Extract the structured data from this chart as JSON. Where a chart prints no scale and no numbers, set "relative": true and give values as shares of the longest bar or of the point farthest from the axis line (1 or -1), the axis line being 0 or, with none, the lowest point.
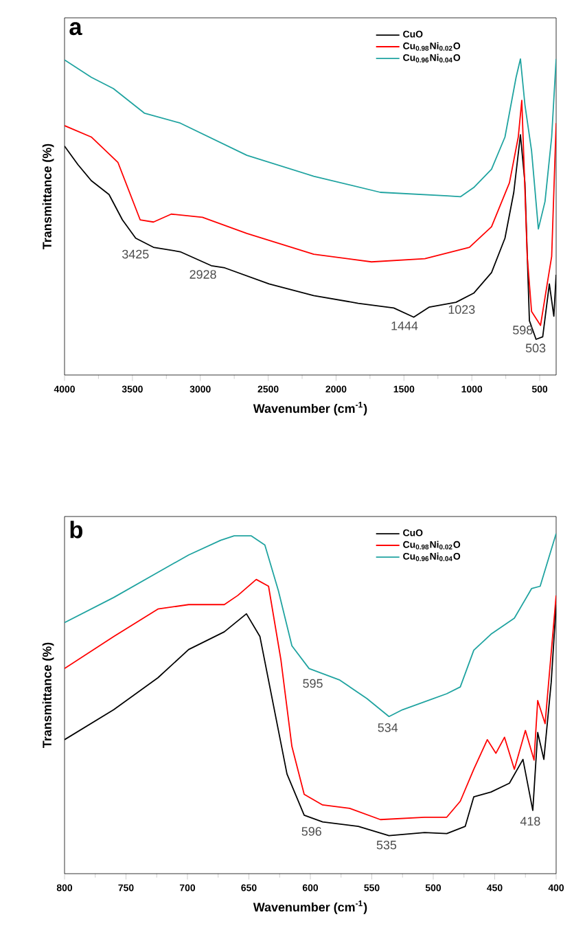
{
  "chart_data": [
    {
      "type": "line",
      "title": "a",
      "xlabel": "Wavenumber (cm$^{-1}$)",
      "ylabel": "Transmittance (%)",
      "relative": true,
      "xlim": [
        4000,
        379
      ],
      "xticks": [
        4000,
        3500,
        3000,
        2500,
        2000,
        1500,
        1000,
        500
      ],
      "legend": "top right",
      "marker": "none",
      "series": [
        {
          "name": "CuO",
          "color": "#000000",
          "x": [
            4000,
            3902,
            3803,
            3672,
            3574,
            3476,
            3345,
            3148,
            2919,
            2820,
            2493,
            2165,
            1837,
            1575,
            1428,
            1313,
            1117,
            986,
            855,
            756,
            691,
            642,
            609,
            576,
            527,
            478,
            429,
            396,
            379
          ],
          "values": [
            0.724,
            0.666,
            0.615,
            0.571,
            0.491,
            0.433,
            0.404,
            0.39,
            0.346,
            0.339,
            0.288,
            0.251,
            0.227,
            0.212,
            0.183,
            0.215,
            0.23,
            0.259,
            0.324,
            0.433,
            0.578,
            0.76,
            0.608,
            0.172,
            0.113,
            0.121,
            0.288,
            0.186,
            0.317
          ]
        },
        {
          "name": "Cu$_{0.98}$Ni$_{0.02}$O",
          "color": "#ff0000",
          "x": [
            4000,
            3803,
            3607,
            3443,
            3345,
            3214,
            2984,
            2657,
            2165,
            1739,
            1346,
            1018,
            855,
            723,
            658,
            632,
            592,
            560,
            494,
            445,
            412,
            379
          ],
          "values": [
            0.789,
            0.753,
            0.673,
            0.491,
            0.484,
            0.509,
            0.499,
            0.448,
            0.382,
            0.358,
            0.368,
            0.404,
            0.469,
            0.608,
            0.753,
            0.869,
            0.375,
            0.201,
            0.157,
            0.288,
            0.375,
            0.797
          ]
        },
        {
          "name": "Cu$_{0.96}$Ni$_{0.04}$O",
          "color": "#1fa3a0",
          "x": [
            4000,
            3803,
            3640,
            3410,
            3148,
            2657,
            2165,
            1674,
            1182,
            1084,
            986,
            855,
            756,
            674,
            642,
            609,
            560,
            510,
            461,
            412,
            379
          ],
          "values": [
            0.997,
            0.942,
            0.906,
            0.828,
            0.797,
            0.695,
            0.629,
            0.578,
            0.567,
            0.564,
            0.593,
            0.651,
            0.753,
            0.942,
            1.0,
            0.855,
            0.709,
            0.462,
            0.549,
            0.753,
            1.0
          ]
        }
      ],
      "annotations": [
        {
          "text": "3425",
          "x": 3425,
          "y": 0.41
        },
        {
          "text": "2928",
          "x": 2928,
          "y": 0.346
        },
        {
          "text": "1444",
          "x": 1444,
          "y": 0.183
        },
        {
          "text": "1023",
          "x": 1023,
          "y": 0.235
        },
        {
          "text": "598",
          "x": 598,
          "y": 0.17
        },
        {
          "text": "503",
          "x": 503,
          "y": 0.113
        }
      ]
    },
    {
      "type": "line",
      "title": "b",
      "xlabel": "Wavenumber (cm$^{-1}$)",
      "ylabel": "Transmittance (%)",
      "relative": true,
      "xlim": [
        800,
        400
      ],
      "xticks": [
        800,
        750,
        700,
        650,
        600,
        550,
        500,
        450,
        400
      ],
      "legend": "top right",
      "marker": "none",
      "series": [
        {
          "name": "CuO",
          "color": "#000000",
          "x": [
            800,
            760,
            724,
            699,
            670,
            652,
            641,
            630,
            619,
            605,
            590,
            561,
            536,
            507,
            489,
            474,
            467,
            453,
            438,
            427,
            419,
            415,
            410,
            404,
            400
          ],
          "values": [
            0.394,
            0.482,
            0.576,
            0.659,
            0.711,
            0.764,
            0.697,
            0.495,
            0.293,
            0.172,
            0.152,
            0.139,
            0.112,
            0.121,
            0.118,
            0.139,
            0.226,
            0.24,
            0.266,
            0.336,
            0.186,
            0.415,
            0.336,
            0.563,
            0.791
          ]
        },
        {
          "name": "Cu$_{0.98}$Ni$_{0.02}$O",
          "color": "#ff0000",
          "x": [
            800,
            760,
            724,
            699,
            670,
            659,
            644,
            634,
            624,
            615,
            605,
            590,
            568,
            543,
            507,
            489,
            478,
            467,
            456,
            449,
            442,
            434,
            425,
            418,
            415,
            409,
            400
          ],
          "values": [
            0.603,
            0.697,
            0.778,
            0.791,
            0.791,
            0.818,
            0.865,
            0.845,
            0.63,
            0.374,
            0.233,
            0.202,
            0.192,
            0.159,
            0.166,
            0.166,
            0.213,
            0.307,
            0.394,
            0.354,
            0.401,
            0.307,
            0.421,
            0.334,
            0.509,
            0.441,
            0.818
          ]
        },
        {
          "name": "Cu$_{0.96}$Ni$_{0.04}$O",
          "color": "#1fa3a0",
          "x": [
            800,
            760,
            724,
            699,
            673,
            662,
            648,
            637,
            626,
            615,
            601,
            576,
            554,
            536,
            525,
            489,
            478,
            467,
            453,
            434,
            420,
            413,
            400
          ],
          "values": [
            0.738,
            0.812,
            0.886,
            0.937,
            0.98,
            0.993,
            0.993,
            0.966,
            0.832,
            0.67,
            0.603,
            0.569,
            0.515,
            0.462,
            0.482,
            0.529,
            0.549,
            0.657,
            0.704,
            0.751,
            0.838,
            0.845,
            1.0
          ]
        }
      ],
      "annotations": [
        {
          "text": "595",
          "x": 595,
          "y": 0.585
        },
        {
          "text": "534",
          "x": 534,
          "y": 0.455
        },
        {
          "text": "596",
          "x": 596,
          "y": 0.15
        },
        {
          "text": "535",
          "x": 535,
          "y": 0.11
        },
        {
          "text": "418",
          "x": 418,
          "y": 0.18
        }
      ]
    }
  ]
}
